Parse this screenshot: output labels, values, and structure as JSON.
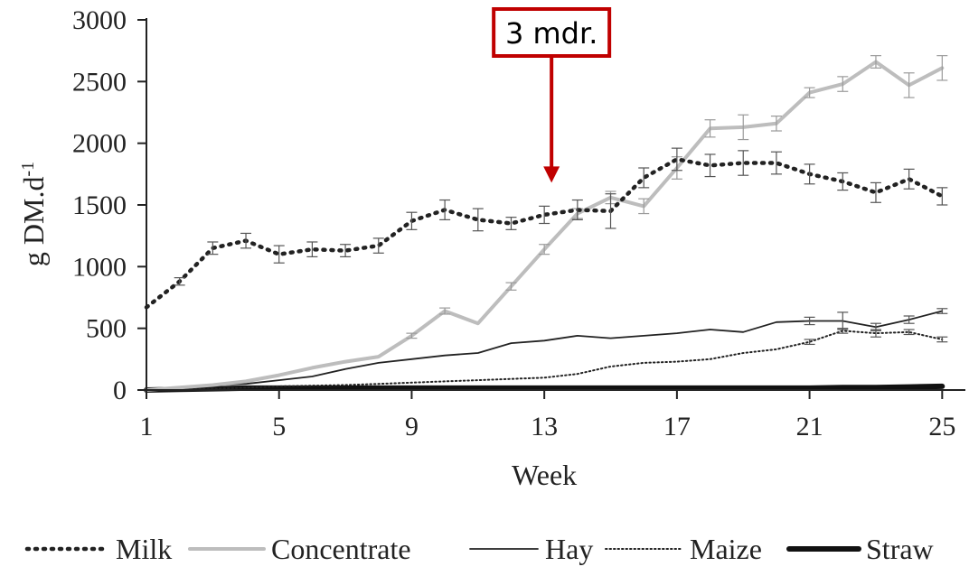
{
  "chart_data": {
    "type": "line",
    "title": "",
    "xlabel": "Week",
    "ylabel_main": "g DM.d",
    "ylabel_sup": "-1",
    "xlim": [
      1,
      25.7
    ],
    "ylim": [
      0,
      3000
    ],
    "xticks": [
      1,
      5,
      9,
      13,
      17,
      21,
      25
    ],
    "yticks": [
      0,
      500,
      1000,
      1500,
      2000,
      2500,
      3000
    ],
    "grid": false,
    "legend_position": "bottom",
    "annotation": {
      "text": "3 mdr.",
      "x": 13,
      "y_arrow_tip": 1680,
      "color": "#c00000"
    },
    "series": [
      {
        "name": "Milk",
        "style": "dotted-bold",
        "color": "#222222",
        "x": [
          1,
          2,
          3,
          4,
          5,
          6,
          7,
          8,
          9,
          10,
          11,
          12,
          13,
          14,
          15,
          16,
          17,
          18,
          19,
          20,
          21,
          22,
          23,
          24,
          25
        ],
        "y": [
          670,
          880,
          1150,
          1210,
          1100,
          1140,
          1130,
          1170,
          1370,
          1460,
          1380,
          1350,
          1420,
          1460,
          1450,
          1720,
          1870,
          1820,
          1840,
          1840,
          1750,
          1690,
          1600,
          1710,
          1570
        ],
        "err": [
          0,
          30,
          50,
          60,
          70,
          60,
          50,
          60,
          70,
          80,
          90,
          50,
          70,
          80,
          140,
          80,
          90,
          90,
          100,
          90,
          80,
          70,
          80,
          80,
          70
        ]
      },
      {
        "name": "Concentrate",
        "style": "solid-thick",
        "color": "#bdbdbd",
        "x": [
          1,
          2,
          3,
          4,
          5,
          6,
          7,
          8,
          9,
          10,
          11,
          12,
          13,
          14,
          15,
          16,
          17,
          18,
          19,
          20,
          21,
          22,
          23,
          24,
          25
        ],
        "y": [
          0,
          20,
          40,
          70,
          120,
          180,
          230,
          270,
          440,
          640,
          540,
          840,
          1140,
          1430,
          1560,
          1490,
          1800,
          2120,
          2130,
          2160,
          2410,
          2480,
          2660,
          2470,
          2610
        ],
        "err": [
          0,
          0,
          0,
          0,
          0,
          0,
          0,
          0,
          20,
          25,
          0,
          30,
          40,
          40,
          50,
          60,
          90,
          70,
          100,
          60,
          40,
          60,
          50,
          100,
          100
        ]
      },
      {
        "name": "Hay",
        "style": "solid-thin",
        "color": "#222222",
        "x": [
          1,
          2,
          3,
          4,
          5,
          6,
          7,
          8,
          9,
          10,
          11,
          12,
          13,
          14,
          15,
          16,
          17,
          18,
          19,
          20,
          21,
          22,
          23,
          24,
          25
        ],
        "y": [
          0,
          20,
          40,
          50,
          80,
          110,
          170,
          220,
          250,
          280,
          300,
          380,
          400,
          440,
          420,
          440,
          460,
          490,
          470,
          550,
          560,
          560,
          510,
          570,
          640
        ],
        "err": [
          0,
          0,
          0,
          0,
          0,
          0,
          0,
          0,
          0,
          0,
          0,
          0,
          0,
          0,
          0,
          0,
          0,
          0,
          0,
          0,
          30,
          70,
          30,
          30,
          20
        ]
      },
      {
        "name": "Maize",
        "style": "dotted-thin",
        "color": "#222222",
        "x": [
          1,
          2,
          3,
          4,
          5,
          6,
          7,
          8,
          9,
          10,
          11,
          12,
          13,
          14,
          15,
          16,
          17,
          18,
          19,
          20,
          21,
          22,
          23,
          24,
          25
        ],
        "y": [
          0,
          5,
          10,
          20,
          30,
          35,
          40,
          50,
          60,
          70,
          80,
          90,
          100,
          130,
          190,
          220,
          230,
          250,
          300,
          330,
          390,
          480,
          460,
          470,
          410
        ],
        "err": [
          0,
          0,
          0,
          0,
          0,
          0,
          0,
          0,
          0,
          0,
          0,
          0,
          0,
          0,
          0,
          0,
          0,
          0,
          0,
          0,
          20,
          20,
          30,
          20,
          20
        ]
      },
      {
        "name": "Straw",
        "style": "solid-bold",
        "color": "#111111",
        "x": [
          1,
          2,
          3,
          4,
          5,
          6,
          7,
          8,
          9,
          10,
          11,
          12,
          13,
          14,
          15,
          16,
          17,
          18,
          19,
          20,
          21,
          22,
          23,
          24,
          25
        ],
        "y": [
          0,
          5,
          10,
          15,
          15,
          15,
          15,
          15,
          15,
          15,
          15,
          15,
          15,
          15,
          15,
          15,
          15,
          15,
          15,
          15,
          15,
          20,
          20,
          25,
          30
        ],
        "err": [
          0,
          0,
          0,
          0,
          0,
          0,
          0,
          0,
          0,
          0,
          0,
          0,
          0,
          0,
          0,
          0,
          0,
          0,
          0,
          0,
          0,
          0,
          0,
          0,
          0
        ]
      }
    ]
  }
}
